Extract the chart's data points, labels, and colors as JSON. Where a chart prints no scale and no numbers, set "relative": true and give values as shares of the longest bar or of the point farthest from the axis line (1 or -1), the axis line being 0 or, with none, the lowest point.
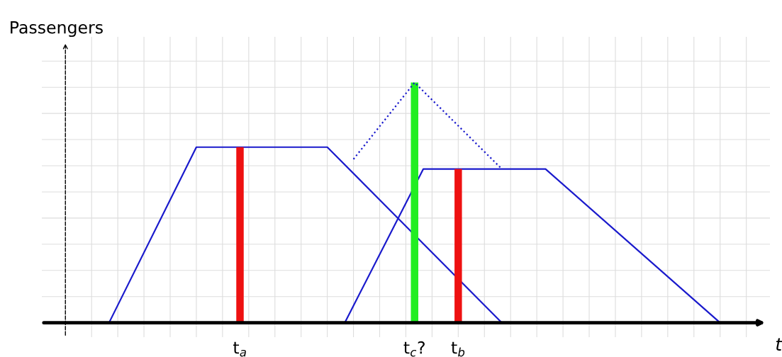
{
  "chart_data": {
    "type": "line",
    "relative": true,
    "ylabel": "Passengers",
    "xlabel": "t",
    "categories": [
      null,
      null,
      null,
      null,
      null,
      null,
      null,
      null,
      null,
      null,
      null,
      null,
      null,
      null,
      null,
      null,
      null,
      null,
      null,
      null,
      "t$_{a}$",
      null,
      null,
      null,
      null,
      null,
      null,
      null,
      null,
      null,
      null,
      null,
      null,
      null,
      null,
      null,
      null,
      null,
      null,
      null,
      "t$_{c}$?",
      null,
      null,
      null,
      null,
      "t$_{b}$",
      null,
      null,
      null,
      null,
      null,
      null,
      null,
      null,
      null,
      null,
      null,
      null,
      null,
      null,
      null,
      null,
      null,
      null,
      null,
      null,
      null,
      null,
      null,
      null,
      null,
      null,
      null,
      null,
      null,
      null,
      null,
      null,
      null
    ],
    "grid": true,
    "series": [
      {
        "color": "#1a1acc",
        "values": [
          null,
          null,
          null,
          null,
          null,
          0,
          null,
          null,
          null,
          null,
          null,
          null,
          null,
          null,
          null,
          0.731,
          null,
          null,
          null,
          null,
          null,
          null,
          null,
          null,
          null,
          null,
          null,
          null,
          null,
          null,
          0.731,
          null,
          null,
          null,
          null,
          null,
          null,
          null,
          null,
          null,
          null,
          null,
          null,
          null,
          null,
          null,
          null,
          null,
          null,
          null,
          0,
          null,
          null,
          null,
          null,
          null,
          null,
          null,
          null,
          null,
          null,
          null,
          null,
          null,
          null,
          null,
          null,
          null,
          null,
          null,
          null,
          null,
          null,
          null,
          null,
          null,
          null,
          null,
          null
        ]
      },
      {
        "color": "#1a1acc",
        "values": [
          null,
          null,
          null,
          null,
          null,
          null,
          null,
          null,
          null,
          null,
          null,
          null,
          null,
          null,
          null,
          null,
          null,
          null,
          null,
          null,
          null,
          null,
          null,
          null,
          null,
          null,
          null,
          null,
          null,
          null,
          null,
          null,
          0,
          null,
          null,
          null,
          null,
          null,
          null,
          null,
          null,
          0.64,
          null,
          null,
          null,
          null,
          null,
          null,
          null,
          null,
          null,
          null,
          null,
          null,
          null,
          0.64,
          null,
          null,
          null,
          null,
          null,
          null,
          null,
          null,
          null,
          null,
          null,
          null,
          null,
          null,
          null,
          null,
          null,
          null,
          null,
          0,
          null,
          null,
          null
        ]
      },
      {
        "color": "#1a1acc",
        "line_style": "dotted",
        "values": [
          null,
          null,
          null,
          null,
          null,
          null,
          null,
          null,
          null,
          null,
          null,
          null,
          null,
          null,
          null,
          null,
          null,
          null,
          null,
          null,
          null,
          null,
          null,
          null,
          null,
          null,
          null,
          null,
          null,
          null,
          null,
          null,
          null,
          0.681,
          null,
          null,
          null,
          null,
          null,
          null,
          1,
          null,
          null,
          null,
          null,
          null,
          null,
          null,
          null,
          null,
          0.64,
          null,
          null,
          null,
          null,
          null,
          null,
          null,
          null,
          null,
          null,
          null,
          null,
          null,
          null,
          null,
          null,
          null,
          null,
          null,
          null,
          null,
          null,
          null,
          null,
          null,
          null,
          null,
          null
        ]
      },
      {
        "type": "bar",
        "values": [
          null,
          null,
          null,
          null,
          null,
          null,
          null,
          null,
          null,
          null,
          null,
          null,
          null,
          null,
          null,
          null,
          null,
          null,
          null,
          null,
          0.731,
          null,
          null,
          null,
          null,
          null,
          null,
          null,
          null,
          null,
          null,
          null,
          null,
          null,
          null,
          null,
          null,
          null,
          null,
          null,
          1,
          null,
          null,
          null,
          null,
          0.64,
          null,
          null,
          null,
          null,
          null,
          null,
          null,
          null,
          null,
          null,
          null,
          null,
          null,
          null,
          null,
          null,
          null,
          null,
          null,
          null,
          null,
          null,
          null,
          null,
          null,
          null,
          null,
          null,
          null,
          null,
          null,
          null,
          null
        ],
        "colors": [
          null,
          null,
          null,
          null,
          null,
          null,
          null,
          null,
          null,
          null,
          null,
          null,
          null,
          null,
          null,
          null,
          null,
          null,
          null,
          null,
          "#ee1111",
          null,
          null,
          null,
          null,
          null,
          null,
          null,
          null,
          null,
          null,
          null,
          null,
          null,
          null,
          null,
          null,
          null,
          null,
          null,
          "#22ee22",
          null,
          null,
          null,
          null,
          "#ee1111",
          null,
          null,
          null,
          null,
          null,
          null,
          null,
          null,
          null,
          null,
          null,
          null,
          null,
          null,
          null,
          null,
          null,
          null,
          null,
          null,
          null,
          null,
          null,
          null,
          null,
          null,
          null,
          null,
          null,
          null,
          null,
          null,
          null
        ]
      }
    ]
  }
}
